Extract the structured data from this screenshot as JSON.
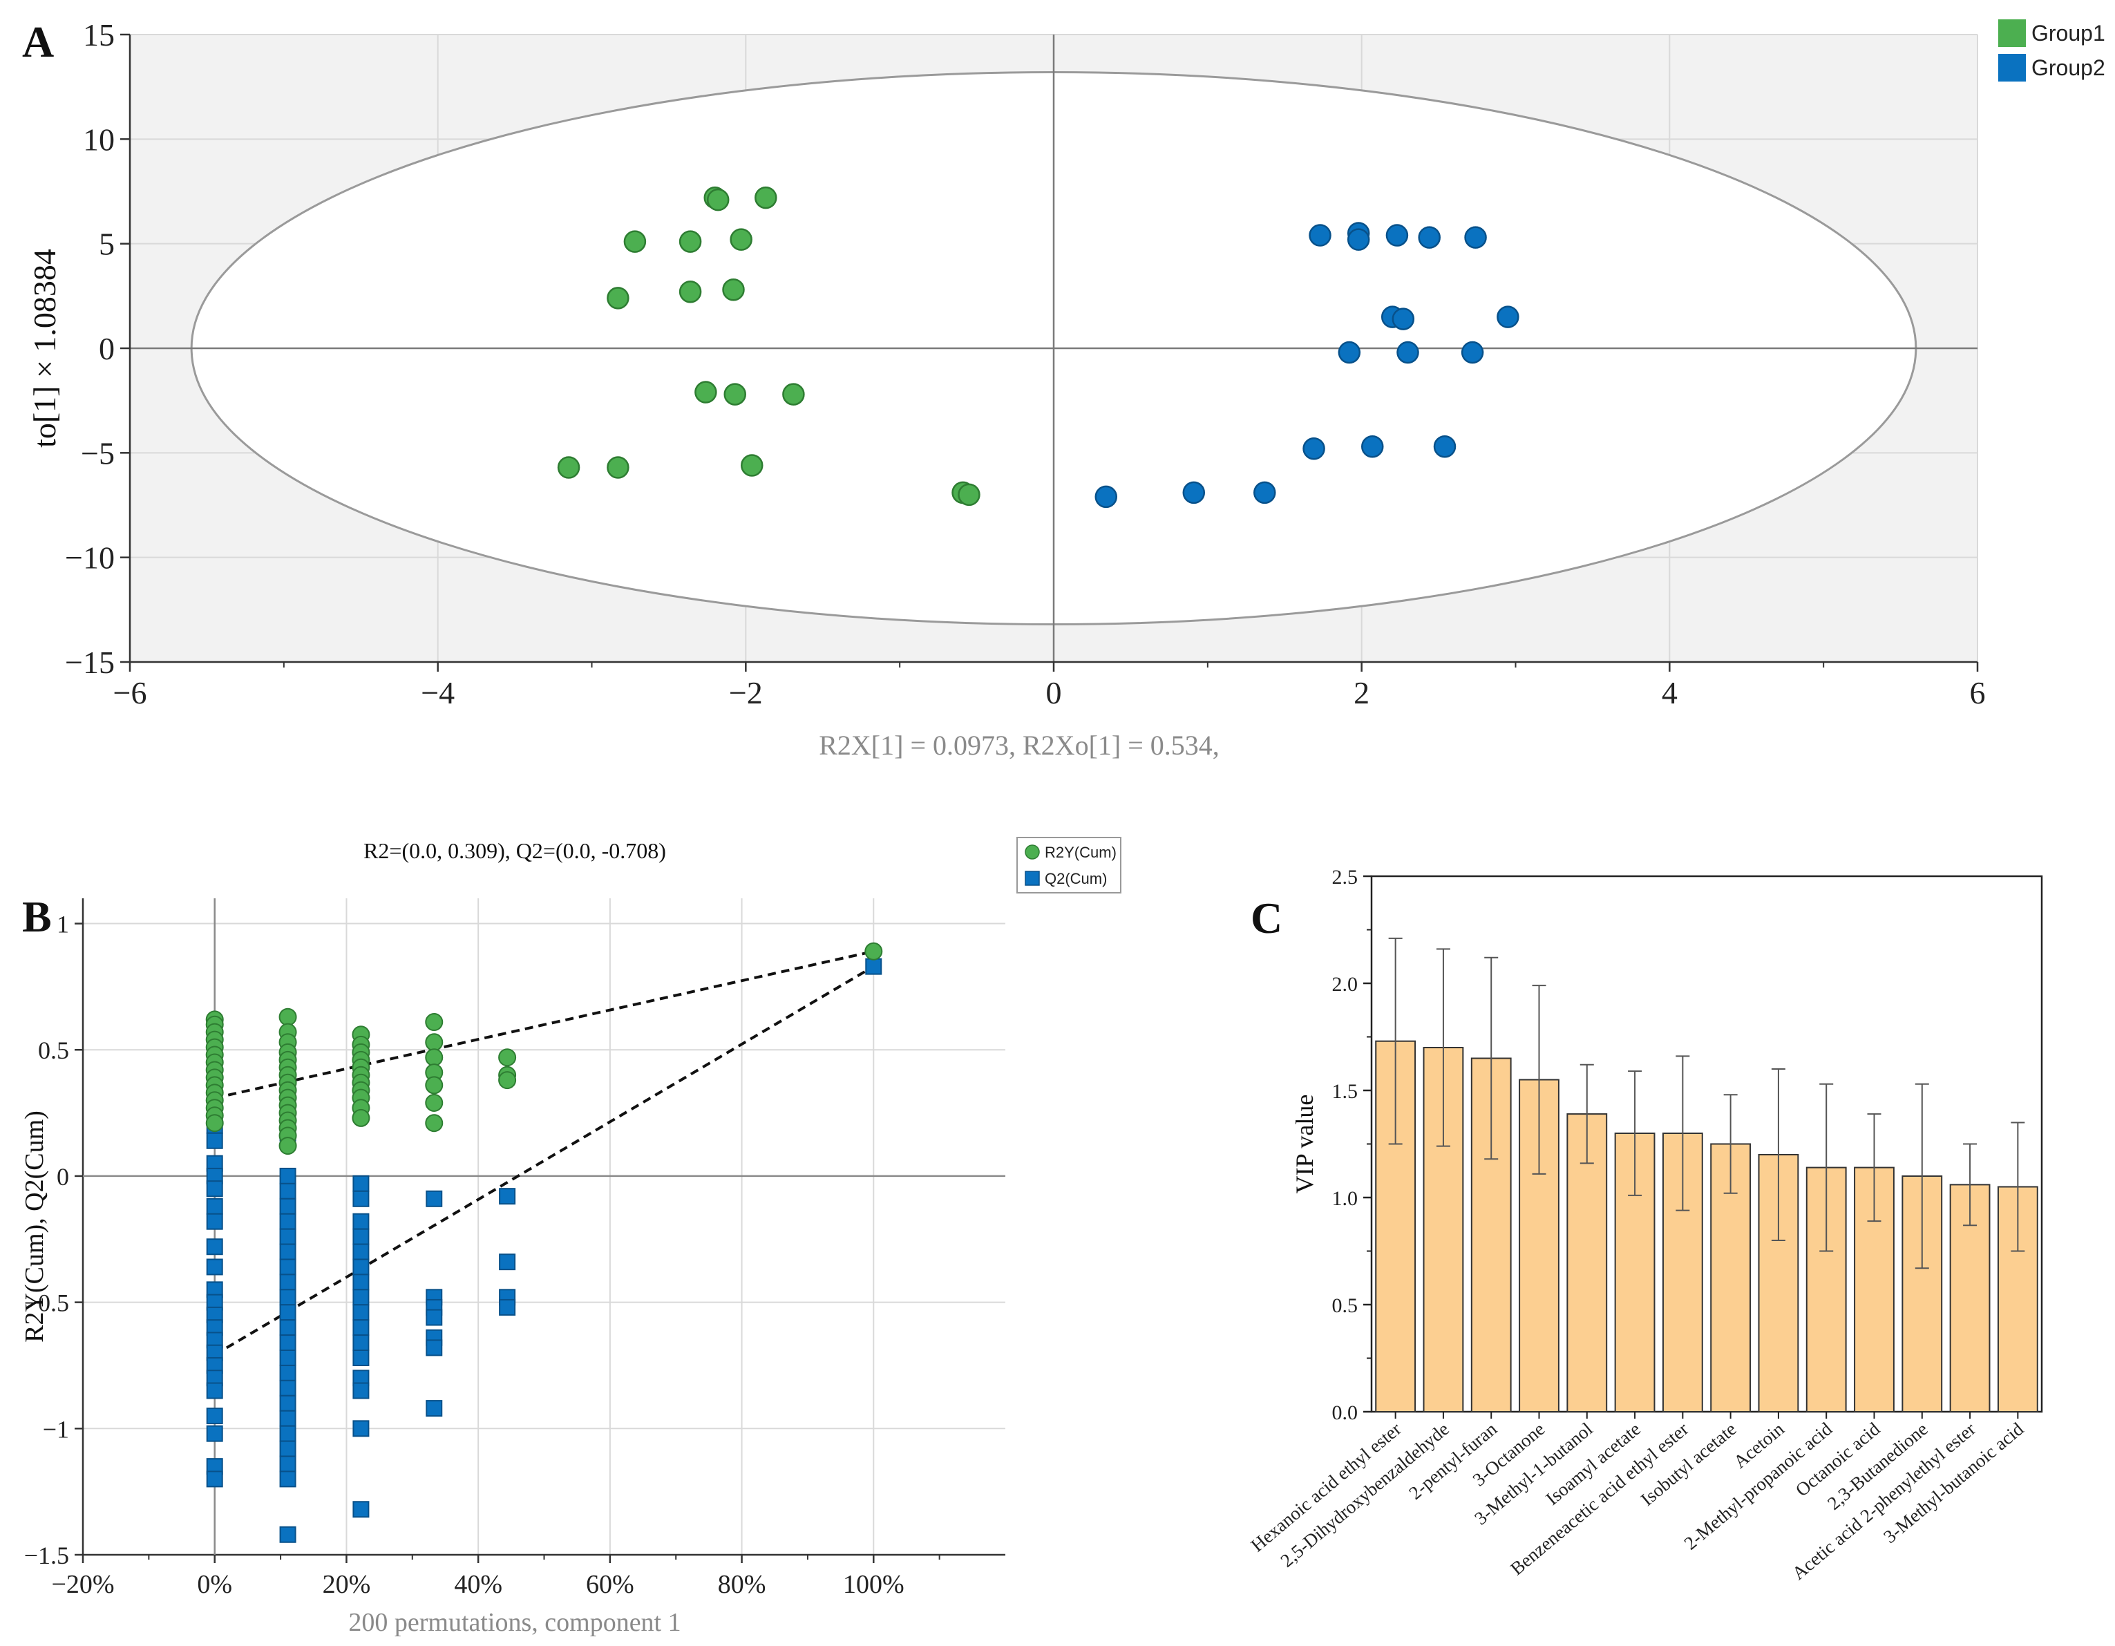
{
  "panels": {
    "a": "A",
    "b": "B",
    "c": "C"
  },
  "chart_data": [
    {
      "type": "scatter",
      "panel": "A",
      "xlabel": "R2X[1] = 0.0973, R2Xo[1] = 0.534,",
      "ylabel": "to[1] × 1.08384",
      "xlim": [
        -6,
        6
      ],
      "ylim": [
        -15,
        15
      ],
      "xticks": [
        "−6",
        "−4",
        "−2",
        "0",
        "2",
        "4",
        "6"
      ],
      "yticks": [
        "15",
        "10",
        "5",
        "0",
        "−5",
        "−10",
        "−15"
      ],
      "ellipse": {
        "cx": 0,
        "cy": 0,
        "rx": 5.6,
        "ry": 13.2
      },
      "legend": [
        {
          "name": "Group1",
          "color": "#4caf50"
        },
        {
          "name": "Group2",
          "color": "#0a72c0"
        }
      ],
      "series": [
        {
          "name": "Group1",
          "color": "#4caf50",
          "edge": "#2e7d32",
          "points": [
            [
              -2.2,
              7.2
            ],
            [
              -2.18,
              7.1
            ],
            [
              -1.87,
              7.2
            ],
            [
              -2.72,
              5.1
            ],
            [
              -2.36,
              5.1
            ],
            [
              -2.03,
              5.2
            ],
            [
              -2.83,
              2.4
            ],
            [
              -2.36,
              2.7
            ],
            [
              -2.08,
              2.8
            ],
            [
              -2.26,
              -2.1
            ],
            [
              -2.07,
              -2.2
            ],
            [
              -1.69,
              -2.2
            ],
            [
              -3.15,
              -5.7
            ],
            [
              -2.83,
              -5.7
            ],
            [
              -1.96,
              -5.6
            ],
            [
              -0.59,
              -6.9
            ],
            [
              -0.55,
              -7.0
            ]
          ]
        },
        {
          "name": "Group2",
          "color": "#0a72c0",
          "edge": "#08518a",
          "points": [
            [
              1.73,
              5.4
            ],
            [
              1.98,
              5.5
            ],
            [
              1.98,
              5.2
            ],
            [
              2.23,
              5.4
            ],
            [
              2.44,
              5.3
            ],
            [
              2.74,
              5.3
            ],
            [
              2.2,
              1.5
            ],
            [
              2.27,
              1.4
            ],
            [
              2.95,
              1.5
            ],
            [
              1.92,
              -0.2
            ],
            [
              2.3,
              -0.2
            ],
            [
              2.72,
              -0.2
            ],
            [
              1.69,
              -4.8
            ],
            [
              2.07,
              -4.7
            ],
            [
              2.54,
              -4.7
            ],
            [
              0.34,
              -7.1
            ],
            [
              0.91,
              -6.9
            ],
            [
              1.37,
              -6.9
            ]
          ]
        }
      ]
    },
    {
      "type": "scatter",
      "panel": "B",
      "title": "R2=(0.0, 0.309), Q2=(0.0, -0.708)",
      "xlabel": "200 permutations, component 1",
      "ylabel": "R2Y(Cum), Q2(Cum)",
      "xlim": [
        -0.2,
        1.2
      ],
      "ylim": [
        -1.5,
        1.1
      ],
      "xticks": [
        {
          "v": -0.2,
          "label": "−20%"
        },
        {
          "v": 0,
          "label": "0%"
        },
        {
          "v": 0.2,
          "label": "20%"
        },
        {
          "v": 0.4,
          "label": "40%"
        },
        {
          "v": 0.6,
          "label": "60%"
        },
        {
          "v": 0.8,
          "label": "80%"
        },
        {
          "v": 1.0,
          "label": "100%"
        }
      ],
      "yticks": [
        {
          "v": 1,
          "label": "1"
        },
        {
          "v": 0.5,
          "label": "0.5"
        },
        {
          "v": 0,
          "label": "0"
        },
        {
          "v": -0.5,
          "label": "−0.5"
        },
        {
          "v": -1,
          "label": "−1"
        },
        {
          "v": -1.5,
          "label": "−1.5"
        }
      ],
      "legend": [
        {
          "name": "R2Y(Cum)",
          "color": "#4caf50",
          "marker": "circle"
        },
        {
          "name": "Q2(Cum)",
          "color": "#0a72c0",
          "marker": "square"
        }
      ],
      "regression_lines": [
        {
          "name": "R2",
          "intercept": 0.309,
          "end": [
            1.0,
            0.89
          ]
        },
        {
          "name": "Q2",
          "intercept": -0.708,
          "end": [
            1.0,
            0.83
          ]
        }
      ],
      "series": [
        {
          "name": "R2Y(Cum)",
          "color": "#4caf50",
          "edge": "#2e7d32",
          "points": [
            [
              0,
              0.62
            ],
            [
              0,
              0.6
            ],
            [
              0,
              0.57
            ],
            [
              0,
              0.54
            ],
            [
              0,
              0.51
            ],
            [
              0,
              0.48
            ],
            [
              0,
              0.45
            ],
            [
              0,
              0.42
            ],
            [
              0,
              0.39
            ],
            [
              0,
              0.36
            ],
            [
              0,
              0.33
            ],
            [
              0,
              0.3
            ],
            [
              0,
              0.27
            ],
            [
              0,
              0.24
            ],
            [
              0,
              0.21
            ],
            [
              0.111,
              0.63
            ],
            [
              0.111,
              0.57
            ],
            [
              0.111,
              0.53
            ],
            [
              0.111,
              0.49
            ],
            [
              0.111,
              0.46
            ],
            [
              0.111,
              0.43
            ],
            [
              0.111,
              0.4
            ],
            [
              0.111,
              0.37
            ],
            [
              0.111,
              0.34
            ],
            [
              0.111,
              0.31
            ],
            [
              0.111,
              0.28
            ],
            [
              0.111,
              0.25
            ],
            [
              0.111,
              0.22
            ],
            [
              0.111,
              0.19
            ],
            [
              0.111,
              0.16
            ],
            [
              0.111,
              0.12
            ],
            [
              0.222,
              0.56
            ],
            [
              0.222,
              0.52
            ],
            [
              0.222,
              0.49
            ],
            [
              0.222,
              0.46
            ],
            [
              0.222,
              0.43
            ],
            [
              0.222,
              0.4
            ],
            [
              0.222,
              0.37
            ],
            [
              0.222,
              0.34
            ],
            [
              0.222,
              0.31
            ],
            [
              0.222,
              0.27
            ],
            [
              0.222,
              0.23
            ],
            [
              0.333,
              0.61
            ],
            [
              0.333,
              0.53
            ],
            [
              0.333,
              0.47
            ],
            [
              0.333,
              0.41
            ],
            [
              0.333,
              0.36
            ],
            [
              0.333,
              0.29
            ],
            [
              0.333,
              0.21
            ],
            [
              0.444,
              0.47
            ],
            [
              0.444,
              0.4
            ],
            [
              0.444,
              0.38
            ],
            [
              1.0,
              0.89
            ]
          ]
        },
        {
          "name": "Q2(Cum)",
          "color": "#0a72c0",
          "edge": "#08518a",
          "points": [
            [
              0,
              0.2
            ],
            [
              0,
              0.14
            ],
            [
              0,
              0.05
            ],
            [
              0,
              0.0
            ],
            [
              0,
              -0.05
            ],
            [
              0,
              -0.12
            ],
            [
              0,
              -0.18
            ],
            [
              0,
              -0.28
            ],
            [
              0,
              -0.36
            ],
            [
              0,
              -0.45
            ],
            [
              0,
              -0.5
            ],
            [
              0,
              -0.55
            ],
            [
              0,
              -0.6
            ],
            [
              0,
              -0.65
            ],
            [
              0,
              -0.7
            ],
            [
              0,
              -0.75
            ],
            [
              0,
              -0.8
            ],
            [
              0,
              -0.85
            ],
            [
              0,
              -0.95
            ],
            [
              0,
              -1.02
            ],
            [
              0,
              -1.15
            ],
            [
              0,
              -1.2
            ],
            [
              0.111,
              0.17
            ],
            [
              0.111,
              0.0
            ],
            [
              0.111,
              -0.06
            ],
            [
              0.111,
              -0.12
            ],
            [
              0.111,
              -0.18
            ],
            [
              0.111,
              -0.24
            ],
            [
              0.111,
              -0.3
            ],
            [
              0.111,
              -0.36
            ],
            [
              0.111,
              -0.42
            ],
            [
              0.111,
              -0.48
            ],
            [
              0.111,
              -0.54
            ],
            [
              0.111,
              -0.6
            ],
            [
              0.111,
              -0.66
            ],
            [
              0.111,
              -0.72
            ],
            [
              0.111,
              -0.78
            ],
            [
              0.111,
              -0.84
            ],
            [
              0.111,
              -0.9
            ],
            [
              0.111,
              -0.96
            ],
            [
              0.111,
              -1.02
            ],
            [
              0.111,
              -1.08
            ],
            [
              0.111,
              -1.14
            ],
            [
              0.111,
              -1.2
            ],
            [
              0.111,
              -1.42
            ],
            [
              0.222,
              -0.03
            ],
            [
              0.222,
              -0.09
            ],
            [
              0.222,
              -0.18
            ],
            [
              0.222,
              -0.24
            ],
            [
              0.222,
              -0.3
            ],
            [
              0.222,
              -0.36
            ],
            [
              0.222,
              -0.42
            ],
            [
              0.222,
              -0.48
            ],
            [
              0.222,
              -0.54
            ],
            [
              0.222,
              -0.6
            ],
            [
              0.222,
              -0.66
            ],
            [
              0.222,
              -0.72
            ],
            [
              0.222,
              -0.8
            ],
            [
              0.222,
              -0.85
            ],
            [
              0.222,
              -1.0
            ],
            [
              0.222,
              -1.32
            ],
            [
              0.333,
              -0.09
            ],
            [
              0.333,
              -0.48
            ],
            [
              0.333,
              -0.52
            ],
            [
              0.333,
              -0.56
            ],
            [
              0.333,
              -0.64
            ],
            [
              0.333,
              -0.68
            ],
            [
              0.333,
              -0.92
            ],
            [
              0.444,
              -0.08
            ],
            [
              0.444,
              -0.34
            ],
            [
              0.444,
              -0.48
            ],
            [
              0.444,
              -0.52
            ],
            [
              1.0,
              0.83
            ]
          ]
        }
      ]
    },
    {
      "type": "bar",
      "panel": "C",
      "ylabel": "VIP value",
      "ylim": [
        0,
        2.5
      ],
      "yticks": [
        "0.0",
        "0.5",
        "1.0",
        "1.5",
        "2.0",
        "2.5"
      ],
      "bar_color": "#fccf91",
      "categories": [
        "Hexanoic acid ethyl ester",
        "2,5-Dihydroxybenzaldehyde",
        "2-pentyl-furan",
        "3-Octanone",
        "3-Methyl-1-butanol",
        "Isoamyl acetate",
        "Benzeneacetic acid ethyl ester",
        "Isobutyl acetate",
        "Acetoin",
        "2-Methyl-propanoic acid",
        "Octanoic acid",
        "2,3-Butanedione",
        "Acetic acid 2-phenylethyl ester",
        "3-Methyl-butanoic acid"
      ],
      "values": [
        1.73,
        1.7,
        1.65,
        1.55,
        1.39,
        1.3,
        1.3,
        1.25,
        1.2,
        1.14,
        1.14,
        1.1,
        1.06,
        1.05
      ],
      "errors": [
        0.48,
        0.46,
        0.47,
        0.44,
        0.23,
        0.29,
        0.36,
        0.23,
        0.4,
        0.39,
        0.25,
        0.43,
        0.19,
        0.3
      ]
    }
  ]
}
